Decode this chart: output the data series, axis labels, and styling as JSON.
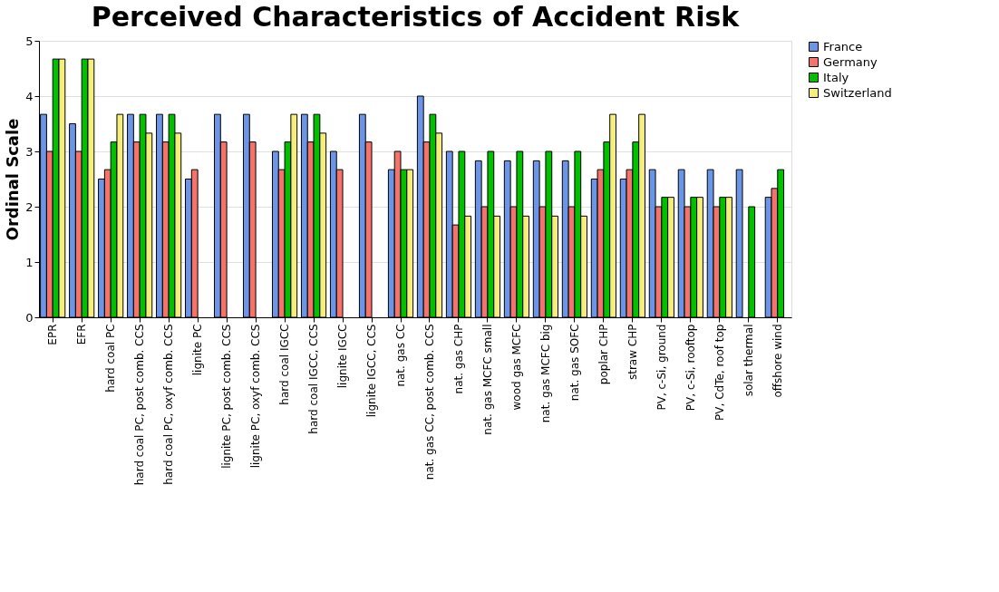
{
  "chart_data": {
    "type": "bar",
    "title": "Perceived Characteristics of Accident Risk",
    "ylabel": "Ordinal Scale",
    "categories": [
      "EPR",
      "EFR",
      "hard coal PC",
      "hard coal PC, post comb. CCS",
      "hard coal PC, oxyf comb. CCS",
      "lignite PC",
      "lignite PC, post comb. CCS",
      "lignite PC, oxyf comb. CCS",
      "hard coal IGCC",
      "hard coal IGCC, CCS",
      "lignite IGCC",
      "lignite IGCC, CCS",
      "nat. gas CC",
      "nat. gas CC, post comb. CCS",
      "nat. gas CHP",
      "nat. gas MCFC small",
      "wood gas MCFC",
      "nat. gas MCFC big",
      "nat. gas SOFC",
      "poplar CHP",
      "straw CHP",
      "PV, c-Si, ground",
      "PV, c-Si, rooftop",
      "PV, CdTe, roof top",
      "solar thermal",
      "offshore wind"
    ],
    "series": [
      {
        "name": "France",
        "color": "#6b96e8",
        "values": [
          3.67,
          3.5,
          2.5,
          3.67,
          3.67,
          2.5,
          3.67,
          3.67,
          3,
          3.67,
          3,
          3.67,
          2.67,
          4,
          3,
          2.83,
          2.83,
          2.83,
          2.83,
          2.5,
          2.5,
          2.67,
          2.67,
          2.67,
          2.67,
          2.17
        ]
      },
      {
        "name": "Germany",
        "color": "#f4736a",
        "values": [
          3,
          3,
          2.67,
          3.17,
          3.17,
          2.67,
          3.17,
          3.17,
          2.67,
          3.17,
          2.67,
          3.17,
          3,
          3.17,
          1.67,
          2,
          2,
          2,
          2,
          2.67,
          2.67,
          2,
          2,
          2,
          null,
          2.33
        ]
      },
      {
        "name": "Italy",
        "color": "#00c000",
        "values": [
          4.67,
          4.67,
          3.17,
          3.67,
          3.67,
          null,
          null,
          null,
          3.17,
          3.67,
          null,
          null,
          2.67,
          3.67,
          3,
          3,
          3,
          3,
          3,
          3.17,
          3.17,
          2.17,
          2.17,
          2.17,
          2,
          2.67
        ]
      },
      {
        "name": "Switzerland",
        "color": "#f5ef7a",
        "values": [
          4.67,
          4.67,
          3.67,
          3.33,
          3.33,
          null,
          null,
          null,
          3.67,
          3.33,
          null,
          null,
          2.67,
          3.33,
          1.83,
          1.83,
          1.83,
          1.83,
          1.83,
          3.67,
          3.67,
          2.17,
          2.17,
          2.17,
          null,
          null
        ]
      }
    ],
    "ylim": [
      0,
      5
    ],
    "yticks": [
      0,
      1,
      2,
      3,
      4,
      5
    ],
    "grid": "y",
    "legend": "right"
  }
}
